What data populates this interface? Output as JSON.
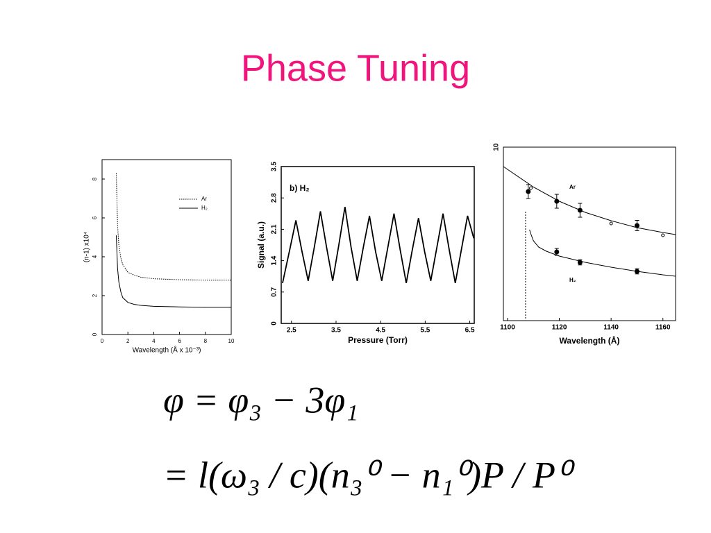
{
  "title": "Phase Tuning",
  "chart_data": [
    {
      "type": "line",
      "x_label": "Wavelength (Å x 10⁻³)",
      "y_label": "(n-1) x10⁴",
      "xlim": [
        0,
        10
      ],
      "xticks": [
        0,
        2,
        4,
        6,
        8,
        10
      ],
      "ylim": [
        0,
        9
      ],
      "yticks": [
        0,
        2,
        4,
        6,
        8
      ],
      "legend": "upper right",
      "series": [
        {
          "name": "Ar",
          "color": "#000000",
          "style": "dotted",
          "x": [
            1.1,
            1.2,
            1.3,
            1.45,
            1.6,
            2,
            2.5,
            3,
            4,
            6,
            8,
            10
          ],
          "values": [
            8.3,
            5.6,
            4.6,
            3.95,
            3.6,
            3.2,
            3.05,
            2.95,
            2.87,
            2.82,
            2.8,
            2.8
          ]
        },
        {
          "name": "H₂",
          "color": "#000000",
          "style": "solid",
          "x": [
            1.1,
            1.2,
            1.3,
            1.45,
            1.6,
            2,
            2.5,
            3,
            4,
            6,
            8,
            10
          ],
          "values": [
            5.1,
            3.4,
            2.7,
            2.2,
            1.9,
            1.65,
            1.55,
            1.5,
            1.45,
            1.42,
            1.4,
            1.4
          ]
        }
      ]
    },
    {
      "type": "line",
      "title": "b) H₂",
      "x_label": "Pressure (Torr)",
      "y_label": "Signal (a.u.)",
      "xlim": [
        2.27,
        6.6
      ],
      "xticks": [
        2.5,
        3.5,
        4.5,
        5.5,
        6.5
      ],
      "ylim": [
        0,
        3.5
      ],
      "yticks": [
        0,
        0.7,
        1.4,
        2.1,
        2.8,
        3.5
      ],
      "series": [
        {
          "color": "#000000",
          "style": "solid",
          "x": [
            2.3,
            2.4625,
            2.6,
            2.7375,
            2.875,
            3.0125,
            3.15,
            3.2875,
            3.425,
            3.5625,
            3.7,
            3.8375,
            3.975,
            4.1125,
            4.25,
            4.3875,
            4.525,
            4.6625,
            4.8,
            4.9375,
            5.075,
            5.2125,
            5.35,
            5.4875,
            5.625,
            5.7625,
            5.9,
            6.0375,
            6.175,
            6.3125,
            6.45,
            6.59
          ],
          "values": [
            0.9,
            1.65,
            2.3,
            1.6,
            0.95,
            1.7,
            2.5,
            1.7,
            0.95,
            1.75,
            2.6,
            1.7,
            0.95,
            1.7,
            2.4,
            1.6,
            0.95,
            1.7,
            2.45,
            1.65,
            0.9,
            1.65,
            2.35,
            1.6,
            0.95,
            1.7,
            2.45,
            1.65,
            0.9,
            1.65,
            2.4,
            1.9
          ]
        }
      ]
    },
    {
      "type": "scatter",
      "x_label": "Wavelength (Å)",
      "xlim": [
        1098.4,
        1164.9
      ],
      "xticks": [
        1100,
        1120,
        1140,
        1160
      ],
      "ylim": [
        0,
        10
      ],
      "yticks": [
        10
      ],
      "series": [
        {
          "name": "Ar",
          "color": "#000000",
          "marker": "filled",
          "x": [
            1108,
            1119,
            1128,
            1150
          ],
          "values": [
            7.44,
            6.88,
            6.36,
            5.48
          ],
          "errors": [
            0.4,
            0.4,
            0.4,
            0.3
          ]
        },
        {
          "color": "#000000",
          "marker": "open",
          "x": [
            1109,
            1140,
            1160
          ],
          "values": [
            7.64,
            5.6,
            4.92
          ]
        },
        {
          "name": "H₂",
          "color": "#000000",
          "marker": "filled",
          "x": [
            1119,
            1128,
            1150
          ],
          "values": [
            3.96,
            3.36,
            2.84
          ],
          "errors": [
            0.2,
            0.15,
            0.15
          ]
        }
      ],
      "curves": [
        {
          "color": "#000000",
          "x": [
            1098.4,
            1110,
            1120,
            1130,
            1140,
            1150,
            1160,
            1164.9
          ],
          "values": [
            8.88,
            7.7,
            6.88,
            6.24,
            5.76,
            5.36,
            5.08,
            4.96
          ]
        },
        {
          "color": "#000000",
          "x": [
            1108.5,
            1109,
            1110,
            1112,
            1115,
            1120,
            1130,
            1140,
            1150,
            1160,
            1164.9
          ],
          "values": [
            5.24,
            5.0,
            4.6,
            4.24,
            4.0,
            3.72,
            3.36,
            3.08,
            2.84,
            2.64,
            2.56
          ]
        }
      ]
    }
  ],
  "equation": [
    "φ = φ₃ − 3φ₁",
    "= l(ω₃ / c)(n₃⁰ − n₁⁰)P / P⁰"
  ]
}
